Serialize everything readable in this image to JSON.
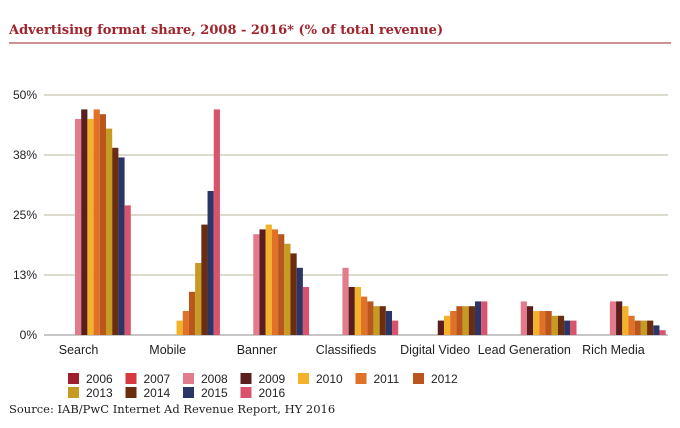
{
  "chart_data": {
    "type": "bar",
    "title": "Advertising format share, 2008 - 2016* (% of total revenue)",
    "xlabel": "",
    "ylabel": "",
    "ylim": [
      0,
      50
    ],
    "yticks": [
      "0%",
      "13%",
      "25%",
      "38%",
      "50%"
    ],
    "ytick_values": [
      0,
      12.5,
      25,
      37.5,
      50
    ],
    "grid": true,
    "legend_position": "bottom",
    "categories": [
      "Search",
      "Mobile",
      "Banner",
      "Classifieds",
      "Digital Video",
      "Lead Generation",
      "Rich Media"
    ],
    "series": [
      {
        "name": "2006",
        "color": "#9e1f2b",
        "values": [
          null,
          null,
          null,
          null,
          null,
          null,
          null
        ]
      },
      {
        "name": "2007",
        "color": "#d63a3f",
        "values": [
          null,
          null,
          null,
          null,
          null,
          null,
          null
        ]
      },
      {
        "name": "2008",
        "color": "#e27b8b",
        "values": [
          45,
          null,
          21,
          14,
          null,
          7,
          7
        ]
      },
      {
        "name": "2009",
        "color": "#5a1e1e",
        "values": [
          47,
          null,
          22,
          10,
          3,
          6,
          7
        ]
      },
      {
        "name": "2010",
        "color": "#f4b12a",
        "values": [
          45,
          3,
          23,
          10,
          4,
          5,
          6
        ]
      },
      {
        "name": "2011",
        "color": "#e07128",
        "values": [
          47,
          5,
          22,
          8,
          5,
          5,
          4
        ]
      },
      {
        "name": "2012",
        "color": "#b8561d",
        "values": [
          46,
          9,
          21,
          7,
          6,
          5,
          3
        ]
      },
      {
        "name": "2013",
        "color": "#c79a22",
        "values": [
          43,
          15,
          19,
          6,
          6,
          4,
          3
        ]
      },
      {
        "name": "2014",
        "color": "#6b2d12",
        "values": [
          39,
          23,
          17,
          6,
          6,
          4,
          3
        ]
      },
      {
        "name": "2015",
        "color": "#2b3666",
        "values": [
          37,
          30,
          14,
          5,
          7,
          3,
          2
        ]
      },
      {
        "name": "2016",
        "color": "#d9536c",
        "values": [
          27,
          47,
          10,
          3,
          7,
          3,
          1
        ]
      }
    ],
    "source": "Source: IAB/PwC Internet Ad Revenue Report, HY 2016"
  },
  "colors": {
    "title": "#a1232b",
    "rule": "#a1232b",
    "grid": "#b9b59a",
    "axis": "#8c8c8c"
  }
}
